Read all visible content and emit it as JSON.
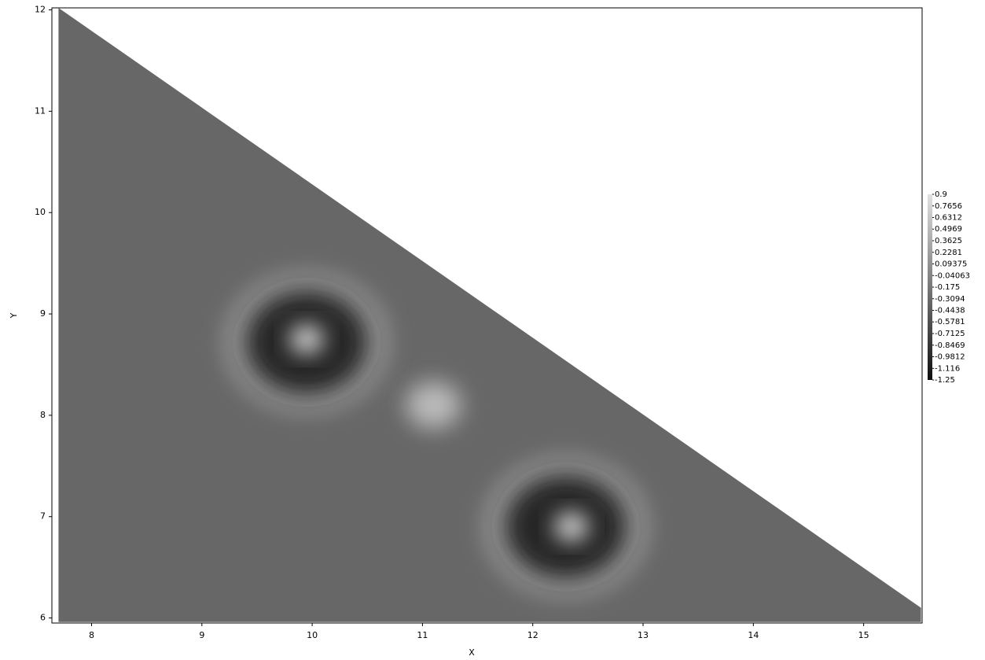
{
  "chart_data": {
    "type": "heatmap",
    "x_label": "X",
    "y_label": "Y",
    "xlim": [
      7.64,
      15.53
    ],
    "ylim": [
      5.95,
      12.02
    ],
    "xticks": [
      8,
      9,
      10,
      11,
      12,
      13,
      14,
      15
    ],
    "yticks": [
      6,
      7,
      8,
      9,
      10,
      11,
      12
    ],
    "region": {
      "x": [
        7.7,
        15.52,
        15.52,
        7.7
      ],
      "y": [
        12.02,
        6.1,
        5.96,
        5.96
      ],
      "z": -0.35
    },
    "points": {
      "x": [
        9.95,
        9.95,
        9.95,
        11.1,
        12.3,
        12.3,
        12.35
      ],
      "y": [
        8.72,
        8.72,
        8.75,
        8.1,
        6.9,
        6.9,
        6.9
      ],
      "z": [
        0.1,
        -1.0,
        0.9,
        0.5,
        0.1,
        -1.0,
        0.9
      ],
      "r": [
        0.75,
        0.55,
        0.15,
        0.25,
        0.75,
        0.55,
        0.15
      ]
    },
    "zlim": [
      -1.25,
      0.9
    ],
    "colorbar_ticks": [
      0.9,
      0.7656,
      0.6312,
      0.4969,
      0.3625,
      0.2281,
      0.09375,
      -0.04063,
      -0.175,
      -0.3094,
      -0.4438,
      -0.5781,
      -0.7125,
      -0.8469,
      -0.9812,
      -1.116,
      -1.25
    ]
  }
}
